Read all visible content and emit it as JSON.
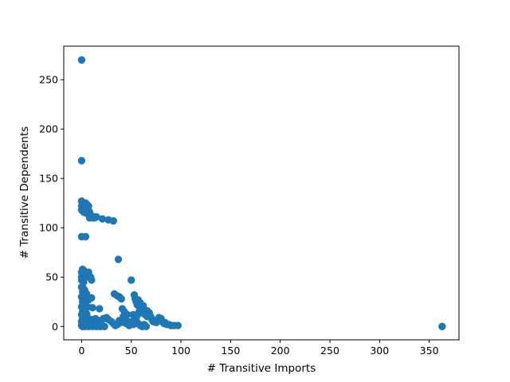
{
  "chart_data": {
    "type": "scatter",
    "title": "",
    "xlabel": "# Transitive Imports",
    "ylabel": "# Transitive Dependents",
    "xlim": [
      -18,
      380
    ],
    "ylim": [
      -13.5,
      284
    ],
    "xticks": [
      0,
      50,
      100,
      150,
      200,
      250,
      300,
      350
    ],
    "yticks": [
      0,
      50,
      100,
      150,
      200,
      250
    ],
    "grid": false,
    "color": "#1f77b4",
    "points": [
      [
        0,
        270
      ],
      [
        0,
        168
      ],
      [
        0,
        127
      ],
      [
        1,
        126
      ],
      [
        2,
        125
      ],
      [
        3,
        124
      ],
      [
        4,
        125
      ],
      [
        5,
        124
      ],
      [
        6,
        123
      ],
      [
        7,
        122
      ],
      [
        0,
        122
      ],
      [
        1,
        120
      ],
      [
        2,
        121
      ],
      [
        3,
        119
      ],
      [
        4,
        118
      ],
      [
        5,
        120
      ],
      [
        6,
        117
      ],
      [
        8,
        116
      ],
      [
        0,
        118
      ],
      [
        2,
        116
      ],
      [
        4,
        115
      ],
      [
        7,
        114
      ],
      [
        9,
        113
      ],
      [
        10,
        112
      ],
      [
        11,
        110
      ],
      [
        12,
        111
      ],
      [
        13,
        110
      ],
      [
        8,
        110
      ],
      [
        14,
        111
      ],
      [
        15,
        111
      ],
      [
        21,
        109
      ],
      [
        27,
        108
      ],
      [
        32,
        107
      ],
      [
        0,
        91
      ],
      [
        4,
        91
      ],
      [
        37,
        68
      ],
      [
        1,
        58
      ],
      [
        2,
        57
      ],
      [
        0,
        55
      ],
      [
        7,
        55
      ],
      [
        1,
        52
      ],
      [
        0,
        50
      ],
      [
        3,
        49
      ],
      [
        9,
        50
      ],
      [
        10,
        47
      ],
      [
        0,
        47
      ],
      [
        2,
        45
      ],
      [
        50,
        47
      ],
      [
        0,
        40
      ],
      [
        1,
        35
      ],
      [
        0,
        30
      ],
      [
        1,
        25
      ],
      [
        0,
        20
      ],
      [
        1,
        15
      ],
      [
        0,
        12
      ],
      [
        1,
        8
      ],
      [
        0,
        5
      ],
      [
        2,
        3
      ],
      [
        0,
        1
      ],
      [
        1,
        0
      ],
      [
        3,
        0
      ],
      [
        5,
        1
      ],
      [
        7,
        0
      ],
      [
        9,
        1
      ],
      [
        11,
        0
      ],
      [
        13,
        1
      ],
      [
        15,
        0
      ],
      [
        17,
        1
      ],
      [
        19,
        0
      ],
      [
        21,
        1
      ],
      [
        23,
        0
      ],
      [
        2,
        10
      ],
      [
        4,
        6
      ],
      [
        6,
        9
      ],
      [
        8,
        5
      ],
      [
        10,
        7
      ],
      [
        12,
        3
      ],
      [
        14,
        8
      ],
      [
        16,
        4
      ],
      [
        18,
        6
      ],
      [
        20,
        2
      ],
      [
        3,
        17
      ],
      [
        5,
        13
      ],
      [
        2,
        29
      ],
      [
        4,
        22
      ],
      [
        6,
        20
      ],
      [
        10,
        29
      ],
      [
        11,
        19
      ],
      [
        18,
        18
      ],
      [
        1,
        40
      ],
      [
        3,
        37
      ],
      [
        5,
        33
      ],
      [
        7,
        27
      ],
      [
        22,
        8
      ],
      [
        25,
        9
      ],
      [
        27,
        7
      ],
      [
        30,
        5
      ],
      [
        32,
        3
      ],
      [
        34,
        1
      ],
      [
        36,
        2
      ],
      [
        38,
        6
      ],
      [
        40,
        4
      ],
      [
        33,
        33
      ],
      [
        36,
        31
      ],
      [
        38,
        30
      ],
      [
        40,
        28
      ],
      [
        41,
        18
      ],
      [
        43,
        15
      ],
      [
        42,
        10
      ],
      [
        44,
        8
      ],
      [
        46,
        12
      ],
      [
        45,
        3
      ],
      [
        48,
        1
      ],
      [
        50,
        5
      ],
      [
        52,
        2
      ],
      [
        53,
        32
      ],
      [
        54,
        28
      ],
      [
        55,
        25
      ],
      [
        56,
        22
      ],
      [
        57,
        27
      ],
      [
        58,
        20
      ],
      [
        59,
        24
      ],
      [
        60,
        18
      ],
      [
        61,
        14
      ],
      [
        62,
        21
      ],
      [
        63,
        17
      ],
      [
        64,
        12
      ],
      [
        65,
        16
      ],
      [
        66,
        10
      ],
      [
        55,
        6
      ],
      [
        57,
        3
      ],
      [
        59,
        1
      ],
      [
        61,
        0
      ],
      [
        63,
        2
      ],
      [
        65,
        0
      ],
      [
        52,
        12
      ],
      [
        54,
        9
      ],
      [
        56,
        11
      ],
      [
        58,
        15
      ],
      [
        66,
        16
      ],
      [
        68,
        14
      ],
      [
        69,
        11
      ],
      [
        70,
        9
      ],
      [
        71,
        7
      ],
      [
        72,
        5
      ],
      [
        73,
        6
      ],
      [
        75,
        4
      ],
      [
        77,
        6
      ],
      [
        78,
        9
      ],
      [
        80,
        8
      ],
      [
        81,
        5
      ],
      [
        83,
        3
      ],
      [
        84,
        4
      ],
      [
        86,
        2
      ],
      [
        88,
        2
      ],
      [
        90,
        1
      ],
      [
        93,
        1
      ],
      [
        97,
        1
      ],
      [
        363,
        0
      ]
    ]
  }
}
